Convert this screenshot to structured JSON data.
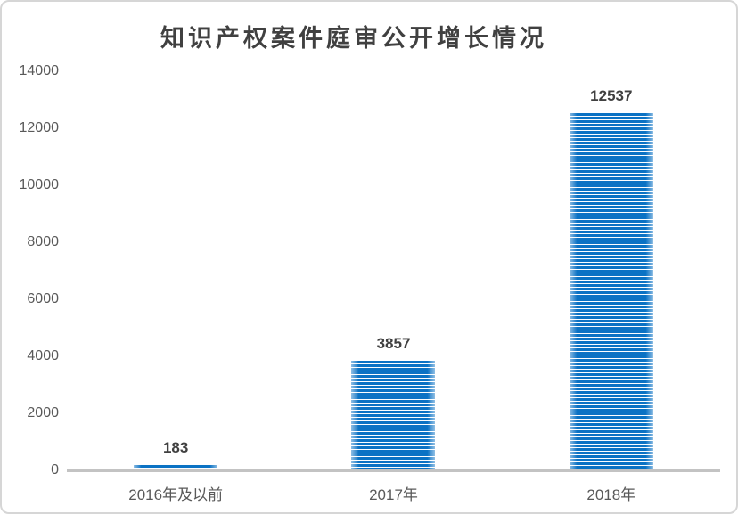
{
  "window": {
    "background_color": "#ffffff",
    "border_color": "#d6d6d6"
  },
  "chart_data": {
    "type": "bar",
    "title": "知识产权案件庭审公开增长情况",
    "categories": [
      "2016年及以前",
      "2017年",
      "2018年"
    ],
    "values": [
      183,
      3857,
      12537
    ],
    "data_labels": [
      "183",
      "3857",
      "12537"
    ],
    "xlabel": "",
    "ylabel": "",
    "ylim": [
      0,
      14000
    ],
    "ytick_interval": 2000,
    "yticks": [
      0,
      2000,
      4000,
      6000,
      8000,
      10000,
      12000,
      14000
    ],
    "grid": false,
    "legend_position": "none",
    "bar_pattern": "horizontal-stripes",
    "bar_color": "#0b72c4",
    "bar_stripe_color": "#ffffff",
    "axis_line_color": "#c3c3c3",
    "tick_label_color": "#595959",
    "data_label_color": "#404040",
    "title_color": "#404040"
  }
}
